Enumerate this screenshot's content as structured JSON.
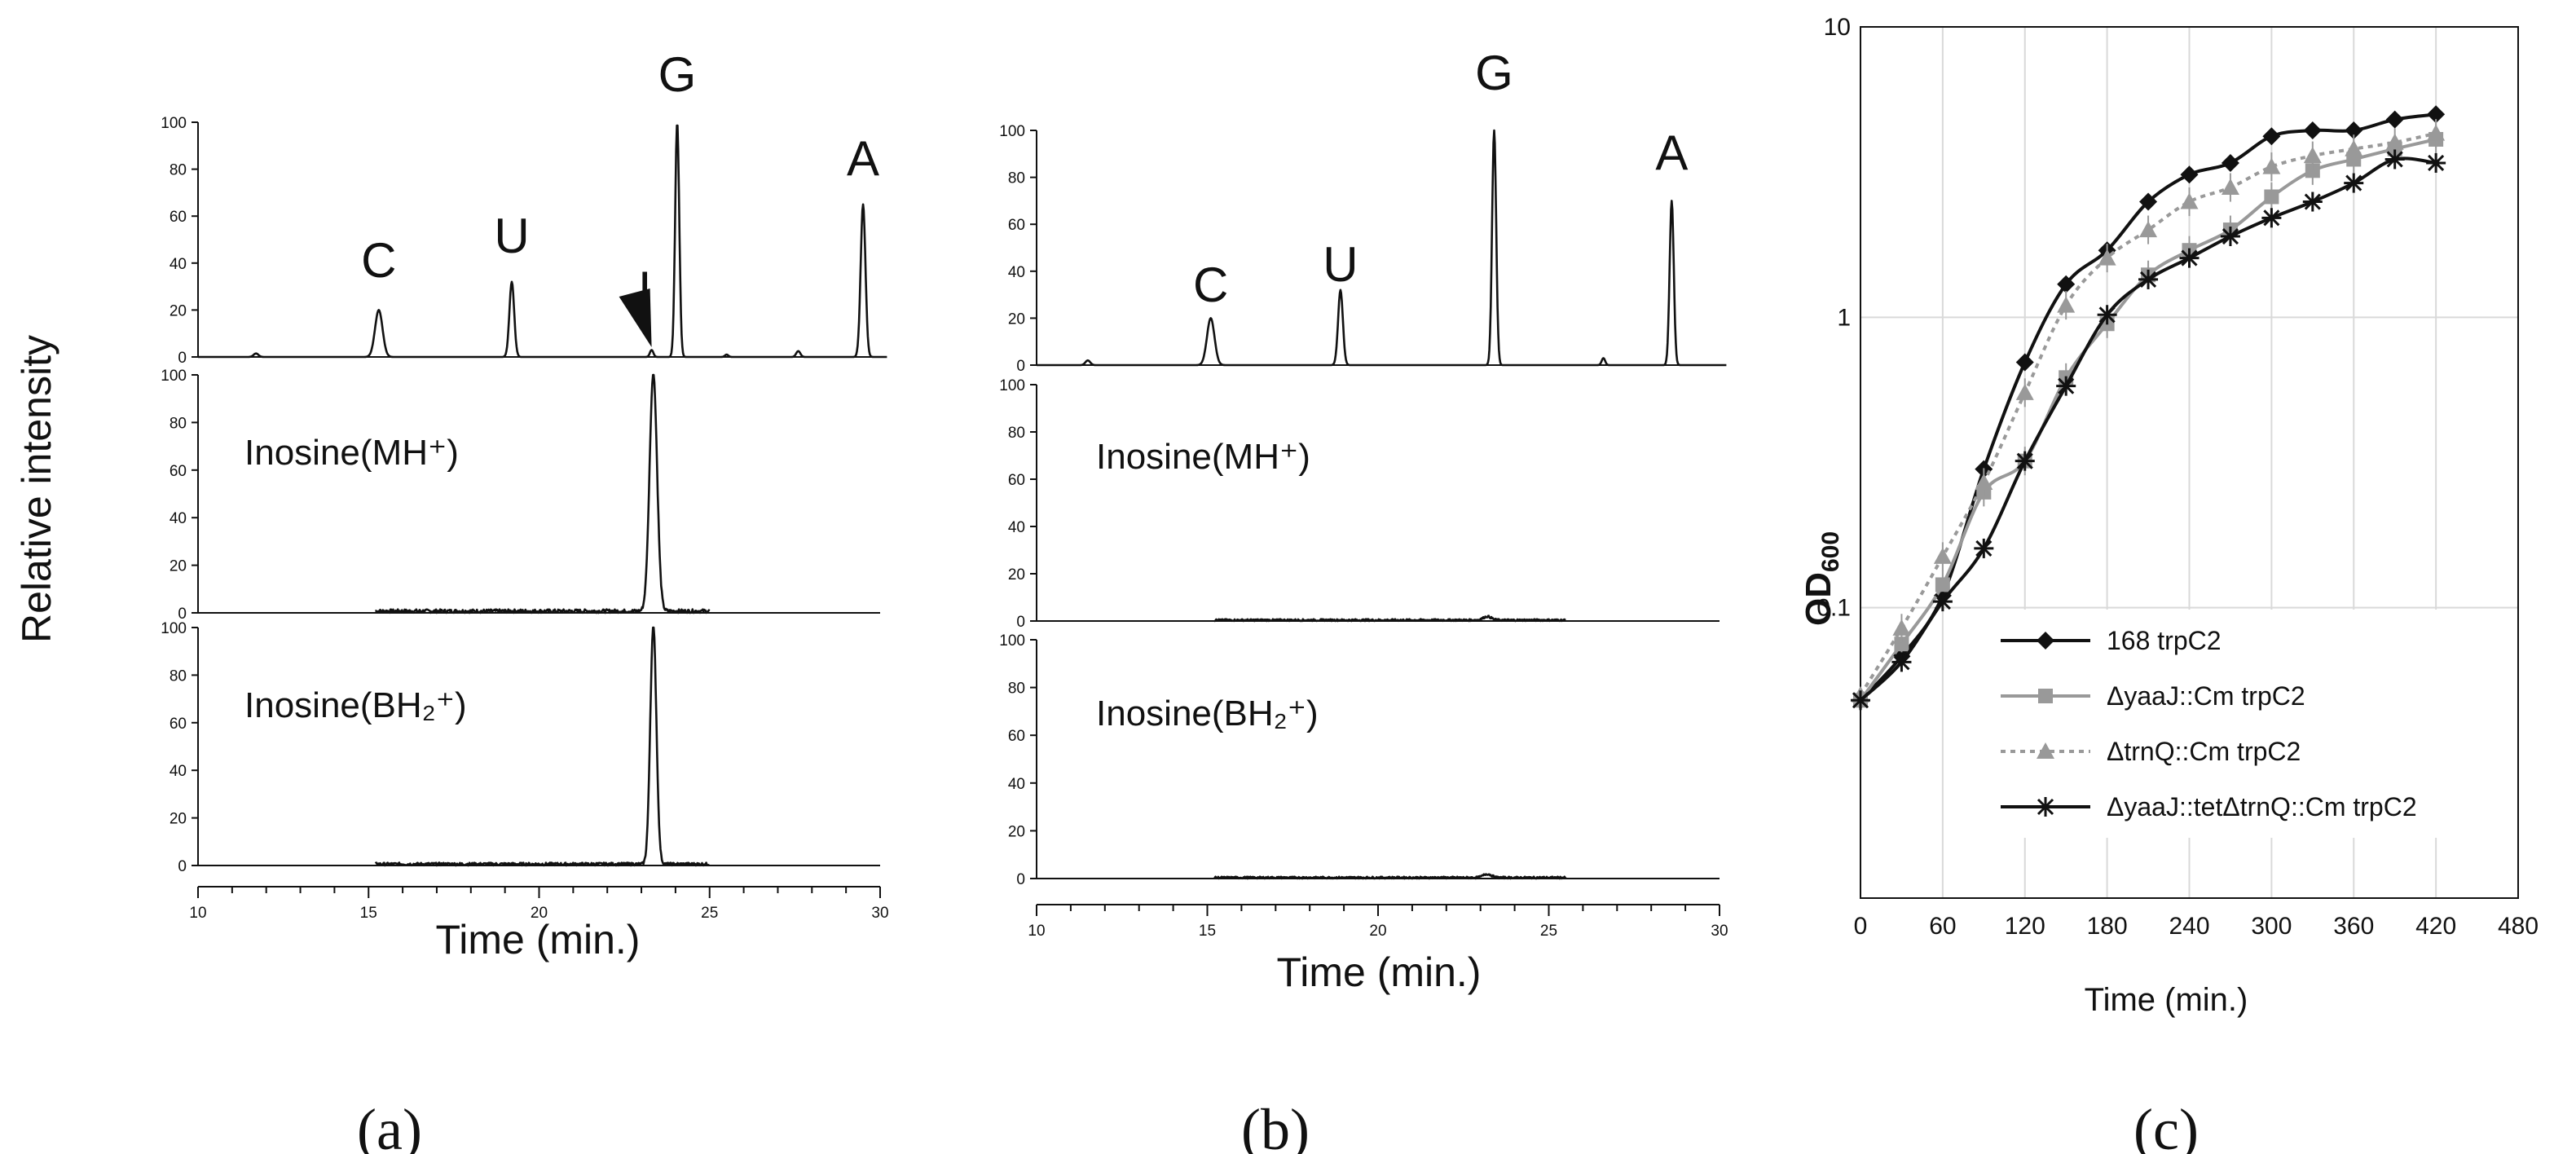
{
  "figure": {
    "y_axis_label": "Relative intensity",
    "panel_labels": [
      "(a)",
      "(b)",
      "(c)"
    ]
  },
  "colors": {
    "ink": "#111111",
    "grey_series": "#999999",
    "grid": "#d9d9d9"
  },
  "chart_data": [
    {
      "id": "a",
      "type": "line",
      "title": "(a)",
      "xlabel": "Time (min.)",
      "ylabel": "Relative intensity",
      "xlim": [
        10,
        30
      ],
      "x_ticks": [
        10,
        15,
        20,
        25,
        30
      ],
      "x_tick_labels": [
        "10",
        "15",
        "20",
        "25",
        "30"
      ],
      "ylim": [
        0,
        100
      ],
      "y_ticks": [
        0,
        20,
        40,
        60,
        80,
        100
      ],
      "y_tick_labels": [
        "0",
        "20",
        "40",
        "60",
        "80",
        "100"
      ],
      "traces": [
        {
          "name": "UV chromatogram",
          "annotation": "",
          "baseline_range": [
            10,
            30.2
          ],
          "peaks": [
            {
              "x": 11.7,
              "h": 1.5,
              "w": 0.07
            },
            {
              "x": 15.3,
              "h": 20,
              "w": 0.11
            },
            {
              "x": 19.2,
              "h": 32,
              "w": 0.07
            },
            {
              "x": 23.3,
              "h": 3,
              "w": 0.05
            },
            {
              "x": 24.05,
              "h": 100,
              "w": 0.06
            },
            {
              "x": 25.5,
              "h": 1,
              "w": 0.05
            },
            {
              "x": 27.6,
              "h": 2.5,
              "w": 0.06
            },
            {
              "x": 29.5,
              "h": 65,
              "w": 0.07
            }
          ],
          "peak_labels": [
            {
              "text": "C",
              "x": 15.3
            },
            {
              "text": "U",
              "x": 19.2
            },
            {
              "text": "I",
              "x": 23.1
            },
            {
              "text": "G",
              "x": 24.05
            },
            {
              "text": "A",
              "x": 29.5
            }
          ],
          "arrow_x": 23.3
        },
        {
          "name": "Inosine(MH+) ion chromatogram",
          "annotation": "Inosine(MH⁺)",
          "baseline_range": [
            15.2,
            25
          ],
          "peaks": [
            {
              "x": 23.35,
              "h": 100,
              "w": 0.11
            }
          ],
          "noise": 1.5
        },
        {
          "name": "Inosine(BH2+) ion chromatogram",
          "annotation": "Inosine(BH₂⁺)",
          "baseline_range": [
            15.2,
            25
          ],
          "peaks": [
            {
              "x": 23.35,
              "h": 100,
              "w": 0.09
            }
          ],
          "noise": 1.2
        }
      ]
    },
    {
      "id": "b",
      "type": "line",
      "title": "(b)",
      "xlabel": "Time (min.)",
      "ylabel": "Relative intensity",
      "xlim": [
        10,
        30
      ],
      "x_ticks": [
        10,
        15,
        20,
        25,
        30
      ],
      "x_tick_labels": [
        "10",
        "15",
        "20",
        "25",
        "30"
      ],
      "ylim": [
        0,
        100
      ],
      "y_ticks": [
        0,
        20,
        40,
        60,
        80,
        100
      ],
      "y_tick_labels": [
        "0",
        "20",
        "40",
        "60",
        "80",
        "100"
      ],
      "traces": [
        {
          "name": "UV chromatogram",
          "annotation": "",
          "baseline_range": [
            10,
            30.2
          ],
          "peaks": [
            {
              "x": 11.5,
              "h": 2,
              "w": 0.07
            },
            {
              "x": 15.1,
              "h": 20,
              "w": 0.11
            },
            {
              "x": 18.9,
              "h": 32,
              "w": 0.07
            },
            {
              "x": 23.4,
              "h": 100,
              "w": 0.06
            },
            {
              "x": 26.6,
              "h": 3,
              "w": 0.05
            },
            {
              "x": 28.6,
              "h": 70,
              "w": 0.06
            }
          ],
          "peak_labels": [
            {
              "text": "C",
              "x": 15.1
            },
            {
              "text": "U",
              "x": 18.9
            },
            {
              "text": "G",
              "x": 23.4
            },
            {
              "text": "A",
              "x": 28.6
            }
          ]
        },
        {
          "name": "Inosine(MH+) ion chromatogram",
          "annotation": "Inosine(MH⁺)",
          "baseline_range": [
            15.2,
            25.5
          ],
          "peaks": [
            {
              "x": 23.2,
              "h": 1.5,
              "w": 0.12
            }
          ],
          "noise": 0.8
        },
        {
          "name": "Inosine(BH2+) ion chromatogram",
          "annotation": "Inosine(BH₂⁺)",
          "baseline_range": [
            15.2,
            25.5
          ],
          "peaks": [
            {
              "x": 23.2,
              "h": 1.5,
              "w": 0.12
            }
          ],
          "noise": 0.8
        }
      ]
    },
    {
      "id": "c",
      "type": "line",
      "title": "(c)",
      "xlabel": "Time (min.)",
      "ylabel": "OD600",
      "ylabel_main": "OD",
      "ylabel_sub": "600",
      "yscale": "log",
      "xlim": [
        0,
        480
      ],
      "x_ticks": [
        0,
        60,
        120,
        180,
        240,
        300,
        360,
        420,
        480
      ],
      "x_tick_labels": [
        "0",
        "60",
        "120",
        "180",
        "240",
        "300",
        "360",
        "420",
        "480"
      ],
      "ylim": [
        0.01,
        10
      ],
      "y_ticks": [
        0.1,
        1,
        10
      ],
      "y_tick_labels": [
        "0.1",
        "1",
        "10"
      ],
      "grid": true,
      "legend": "center-right",
      "x": [
        0,
        30,
        60,
        90,
        120,
        150,
        180,
        210,
        240,
        270,
        300,
        330,
        360,
        390,
        420
      ],
      "series": [
        {
          "name": "168 trpC2",
          "color": "#111111",
          "marker": "diamond",
          "dash": "",
          "values": [
            0.048,
            0.068,
            0.11,
            0.3,
            0.7,
            1.3,
            1.7,
            2.5,
            3.1,
            3.4,
            4.2,
            4.4,
            4.4,
            4.8,
            5.0
          ]
        },
        {
          "name": "ΔyaaJ::Cm trpC2",
          "color": "#999999",
          "marker": "square",
          "dash": "",
          "values": [
            0.048,
            0.075,
            0.12,
            0.25,
            0.32,
            0.62,
            0.95,
            1.4,
            1.7,
            2.0,
            2.6,
            3.2,
            3.5,
            3.8,
            4.1
          ]
        },
        {
          "name": "ΔtrnQ::Cm trpC2",
          "color": "#999999",
          "marker": "triangle",
          "dash": "6 6",
          "values": [
            0.05,
            0.085,
            0.15,
            0.27,
            0.55,
            1.1,
            1.6,
            2.0,
            2.5,
            2.8,
            3.3,
            3.6,
            3.8,
            4.0,
            4.3
          ]
        },
        {
          "name": "ΔyaaJ::tetΔtrnQ::Cm trpC2",
          "color": "#111111",
          "marker": "star",
          "dash": "",
          "values": [
            0.048,
            0.065,
            0.105,
            0.16,
            0.32,
            0.58,
            1.02,
            1.35,
            1.6,
            1.9,
            2.2,
            2.5,
            2.9,
            3.5,
            3.4
          ]
        }
      ]
    }
  ]
}
